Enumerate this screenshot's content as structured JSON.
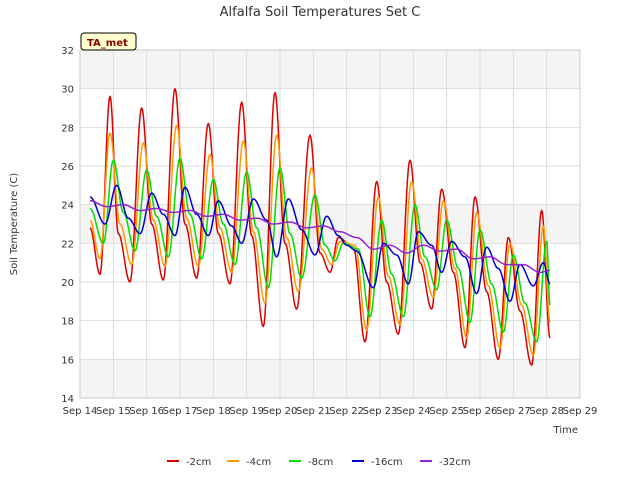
{
  "chart_data": {
    "type": "line",
    "title": "Alfalfa Soil Temperatures Set C",
    "xlabel": "Time",
    "ylabel": "Soil Temperature (C)",
    "badge": "TA_met",
    "xlim": [
      14,
      29
    ],
    "ylim": [
      14,
      32
    ],
    "yticks": [
      14,
      16,
      18,
      20,
      22,
      24,
      26,
      28,
      30,
      32
    ],
    "xticks": [
      {
        "v": 14,
        "label": "Sep 14"
      },
      {
        "v": 15,
        "label": "Sep 15"
      },
      {
        "v": 16,
        "label": "Sep 16"
      },
      {
        "v": 17,
        "label": "Sep 17"
      },
      {
        "v": 18,
        "label": "Sep 18"
      },
      {
        "v": 19,
        "label": "Sep 19"
      },
      {
        "v": 20,
        "label": "Sep 20"
      },
      {
        "v": 21,
        "label": "Sep 21"
      },
      {
        "v": 22,
        "label": "Sep 22"
      },
      {
        "v": 23,
        "label": "Sep 23"
      },
      {
        "v": 24,
        "label": "Sep 24"
      },
      {
        "v": 25,
        "label": "Sep 25"
      },
      {
        "v": 26,
        "label": "Sep 26"
      },
      {
        "v": 27,
        "label": "Sep 27"
      },
      {
        "v": 28,
        "label": "Sep 28"
      },
      {
        "v": 29,
        "label": "Sep 29"
      }
    ],
    "legend_position": "bottom",
    "grid": true,
    "series": [
      {
        "name": "-2cm",
        "color": "#dd0000",
        "x": [
          14.3,
          14.6,
          14.9,
          15.15,
          15.5,
          15.85,
          16.15,
          16.5,
          16.85,
          17.15,
          17.5,
          17.85,
          18.15,
          18.5,
          18.85,
          19.15,
          19.5,
          19.85,
          20.15,
          20.5,
          20.9,
          21.2,
          21.5,
          21.75,
          22.2,
          22.55,
          22.9,
          23.2,
          23.55,
          23.9,
          24.2,
          24.55,
          24.85,
          25.2,
          25.55,
          25.85,
          26.2,
          26.55,
          26.85,
          27.2,
          27.55,
          27.85,
          28.1
        ],
        "y": [
          22.8,
          20.4,
          29.6,
          22.5,
          20.0,
          29.0,
          23.0,
          20.1,
          30.0,
          23.0,
          20.2,
          28.2,
          22.5,
          19.9,
          29.3,
          22.4,
          17.7,
          29.8,
          22.0,
          18.6,
          27.6,
          21.5,
          20.5,
          22.3,
          21.8,
          16.9,
          25.2,
          20.0,
          17.3,
          26.3,
          21.0,
          18.6,
          24.8,
          20.5,
          16.6,
          24.4,
          19.5,
          16.0,
          22.3,
          18.5,
          15.7,
          23.7,
          17.1
        ]
      },
      {
        "name": "-4cm",
        "color": "#ff9900",
        "x": [
          14.3,
          14.6,
          14.9,
          15.2,
          15.55,
          15.9,
          16.2,
          16.55,
          16.9,
          17.2,
          17.55,
          17.9,
          18.2,
          18.55,
          18.9,
          19.2,
          19.55,
          19.9,
          20.2,
          20.55,
          20.95,
          21.25,
          21.55,
          21.8,
          22.25,
          22.6,
          22.95,
          23.25,
          23.6,
          23.95,
          24.25,
          24.6,
          24.9,
          25.25,
          25.6,
          25.9,
          26.25,
          26.6,
          26.9,
          27.25,
          27.6,
          27.9,
          28.1
        ],
        "y": [
          23.2,
          21.2,
          27.7,
          23.0,
          20.9,
          27.2,
          23.2,
          20.8,
          28.1,
          23.3,
          20.8,
          26.6,
          22.8,
          20.5,
          27.3,
          22.6,
          18.9,
          27.6,
          22.3,
          19.5,
          25.9,
          21.7,
          20.9,
          22.1,
          21.9,
          17.5,
          24.4,
          20.3,
          17.8,
          25.2,
          21.2,
          19.2,
          24.2,
          20.7,
          17.1,
          23.6,
          19.8,
          16.6,
          22.0,
          18.8,
          16.2,
          22.9,
          17.9
        ]
      },
      {
        "name": "-8cm",
        "color": "#00dd00",
        "x": [
          14.3,
          14.7,
          15.0,
          15.3,
          15.65,
          16.0,
          16.3,
          16.65,
          17.0,
          17.3,
          17.65,
          18.0,
          18.3,
          18.65,
          19.0,
          19.3,
          19.65,
          20.0,
          20.3,
          20.65,
          21.05,
          21.35,
          21.65,
          21.9,
          22.35,
          22.7,
          23.05,
          23.35,
          23.7,
          24.05,
          24.35,
          24.7,
          25.0,
          25.35,
          25.7,
          26.0,
          26.35,
          26.7,
          27.0,
          27.35,
          27.7,
          28.0,
          28.1
        ],
        "y": [
          23.8,
          22.0,
          26.3,
          23.6,
          21.6,
          25.8,
          23.4,
          21.3,
          26.4,
          23.5,
          21.2,
          25.3,
          23.0,
          20.9,
          25.7,
          22.8,
          19.7,
          25.9,
          22.5,
          20.2,
          24.5,
          21.9,
          21.1,
          22.0,
          21.7,
          18.2,
          23.2,
          20.4,
          18.2,
          24.0,
          21.3,
          19.6,
          23.2,
          20.7,
          17.9,
          22.7,
          19.9,
          17.4,
          21.4,
          18.9,
          16.9,
          22.1,
          18.8
        ]
      },
      {
        "name": "-16cm",
        "color": "#0000cc",
        "x": [
          14.3,
          14.75,
          15.1,
          15.45,
          15.8,
          16.15,
          16.5,
          16.85,
          17.15,
          17.5,
          17.85,
          18.15,
          18.55,
          18.85,
          19.2,
          19.6,
          19.9,
          20.25,
          20.65,
          21.05,
          21.4,
          21.75,
          22.0,
          22.3,
          22.8,
          23.1,
          23.5,
          23.85,
          24.15,
          24.55,
          24.85,
          25.15,
          25.55,
          25.9,
          26.2,
          26.55,
          26.9,
          27.2,
          27.6,
          27.9,
          28.1
        ],
        "y": [
          24.4,
          23.0,
          25.0,
          23.3,
          22.5,
          24.6,
          23.5,
          22.4,
          24.9,
          23.5,
          22.4,
          24.2,
          22.9,
          22.0,
          24.3,
          23.2,
          21.3,
          24.3,
          22.7,
          21.4,
          23.4,
          22.4,
          21.9,
          21.6,
          19.7,
          22.0,
          21.4,
          19.9,
          22.6,
          21.9,
          20.5,
          22.1,
          21.3,
          19.4,
          21.8,
          20.7,
          19.0,
          20.9,
          19.8,
          21.0,
          19.9
        ]
      },
      {
        "name": "-32cm",
        "color": "#9922cc",
        "x": [
          14.3,
          14.8,
          15.3,
          15.8,
          16.3,
          16.8,
          17.3,
          17.8,
          18.3,
          18.8,
          19.3,
          19.8,
          20.3,
          20.8,
          21.3,
          21.8,
          22.3,
          22.8,
          23.3,
          23.8,
          24.3,
          24.8,
          25.3,
          25.8,
          26.3,
          26.8,
          27.3,
          27.8,
          28.1
        ],
        "y": [
          24.2,
          23.9,
          24.0,
          23.7,
          23.8,
          23.6,
          23.7,
          23.4,
          23.5,
          23.2,
          23.3,
          23.0,
          23.1,
          22.8,
          22.9,
          22.6,
          22.3,
          21.7,
          21.9,
          21.5,
          21.9,
          21.6,
          21.7,
          21.2,
          21.3,
          20.9,
          20.9,
          20.5,
          20.6
        ]
      }
    ]
  }
}
